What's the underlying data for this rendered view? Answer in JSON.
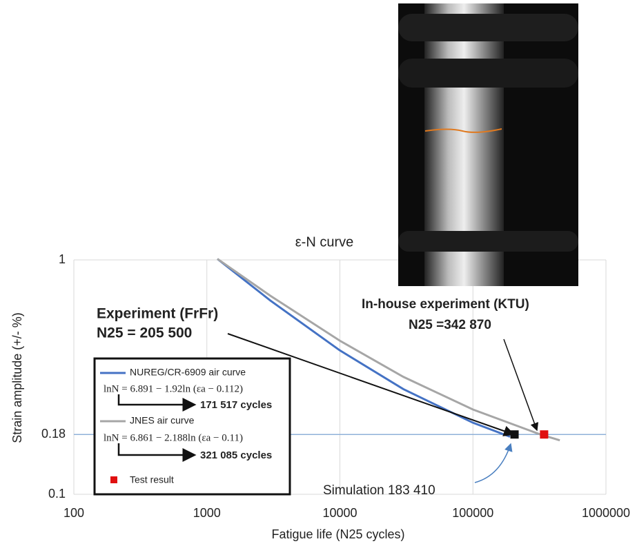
{
  "chart_data": {
    "type": "line",
    "title": "ε-N curve",
    "x_label": "Fatigue life (N25 cycles)",
    "y_label": "Strain amplitude (+/- %)",
    "log_x": true,
    "log_y": true,
    "grid": true,
    "xlim": [
      100,
      1000000
    ],
    "xticks": [
      100,
      1000,
      10000,
      100000,
      1000000
    ],
    "ylim": [
      0.1,
      1
    ],
    "yticks": [
      0.1,
      0.18,
      1
    ],
    "hline": {
      "value": 0.18,
      "color": "#8fb0d8"
    },
    "series": [
      {
        "name": "NUREG/CR-6909 air curve",
        "color": "#4472c4",
        "formula": "lnN = 6.891 − 1.92ln (εa − 0.112)",
        "result": "171 517 cycles",
        "x": [
          1200,
          3000,
          10000,
          30000,
          100000,
          190000
        ],
        "values": [
          1.01,
          0.671,
          0.411,
          0.281,
          0.202,
          0.176
        ]
      },
      {
        "name": "JNES air curve",
        "color": "#a6a6a6",
        "formula": "lnN = 6.861 − 2.188ln (εa − 0.11)",
        "result": "321 085 cycles",
        "x": [
          1200,
          3000,
          10000,
          30000,
          100000,
          321085,
          450000
        ],
        "values": [
          1.01,
          0.703,
          0.452,
          0.317,
          0.23,
          0.18,
          0.17
        ]
      }
    ],
    "points": [
      {
        "name": "Test result",
        "color": "#e01010",
        "x": 342870,
        "value": 0.18
      },
      {
        "color": "#111111",
        "x": 205500,
        "value": 0.18
      }
    ],
    "annotations": {
      "experiment": "Experiment (FrFr)",
      "experiment_n": "N25 = 205 500",
      "inhouse": "In-house experiment (KTU)",
      "inhouse_n": "N25 =342 870",
      "simulation": "Simulation 183 410"
    }
  }
}
